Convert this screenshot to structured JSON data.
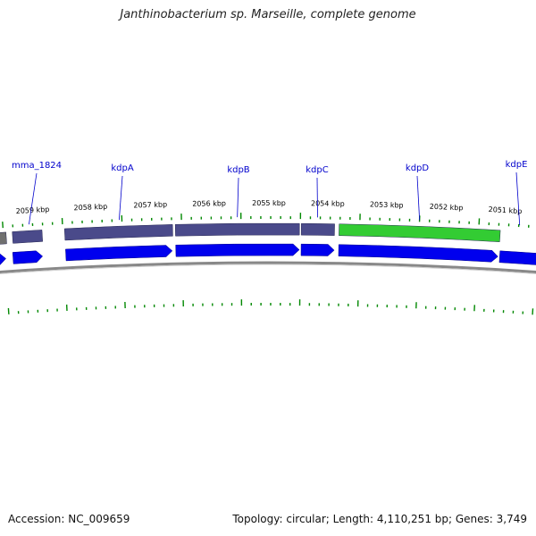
{
  "title": "Janthinobacterium sp. Marseille, complete genome",
  "footer": {
    "accession": "Accession: NC_009659",
    "summary": "Topology: circular; Length: 4,110,251 bp; Genes: 3,749"
  },
  "colors": {
    "cds_strand": "#0000ee",
    "gene_shared": "#4a4a8a",
    "gene_highlight": "#33cc33",
    "gene_grey": "#707070",
    "backbone": "#888888",
    "ticks": "#008800",
    "gene_label": "#0000cc"
  },
  "scale": {
    "unit": "kbp",
    "labels": [
      "2059 kbp",
      "2058 kbp",
      "2057 kbp",
      "2056 kbp",
      "2055 kbp",
      "2054 kbp",
      "2053 kbp",
      "2052 kbp",
      "2051 kbp"
    ]
  },
  "genes": [
    {
      "name": "mma_1824"
    },
    {
      "name": "kdpA"
    },
    {
      "name": "kdpB"
    },
    {
      "name": "kdpC"
    },
    {
      "name": "kdpD"
    },
    {
      "name": "kdpE"
    }
  ]
}
